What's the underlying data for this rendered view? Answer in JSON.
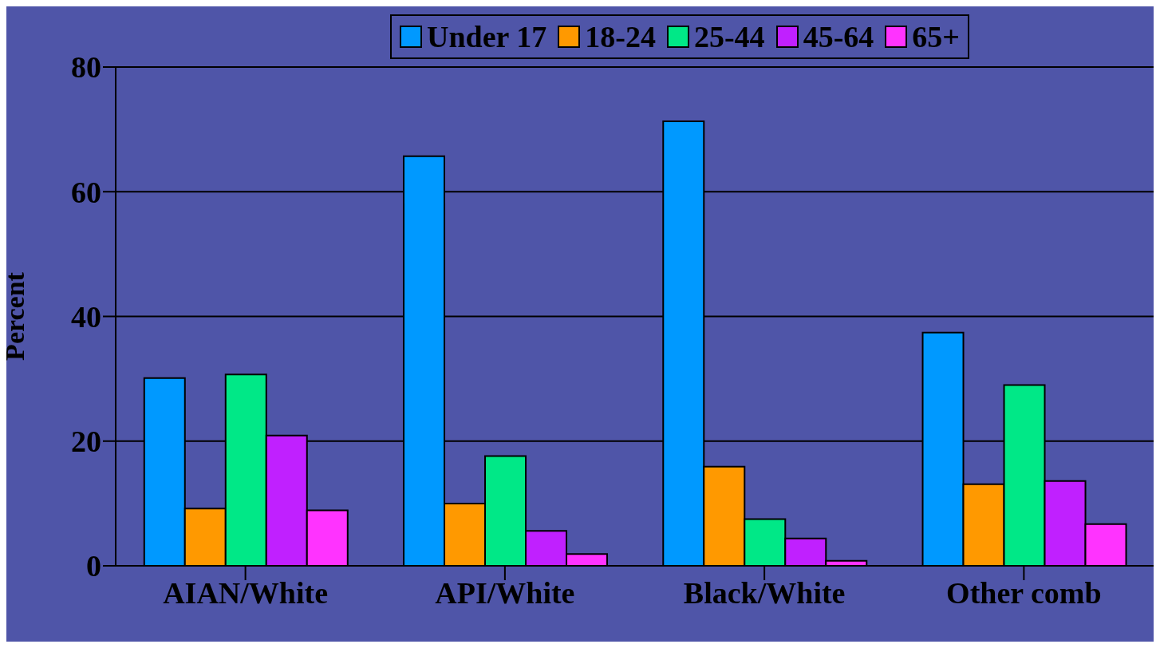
{
  "chart_data": {
    "type": "bar",
    "ylabel": "Percent",
    "categories": [
      "AIAN/White",
      "API/White",
      "Black/White",
      "Other comb"
    ],
    "series": [
      {
        "name": "Under 17",
        "color": "#0099ff",
        "values": [
          30.1,
          65.7,
          71.3,
          37.4
        ]
      },
      {
        "name": "18-24",
        "color": "#ff9900",
        "values": [
          9.2,
          10.0,
          15.9,
          13.1
        ]
      },
      {
        "name": "25-44",
        "color": "#00e887",
        "values": [
          30.7,
          17.6,
          7.5,
          29.0
        ]
      },
      {
        "name": "45-64",
        "color": "#c020ff",
        "values": [
          20.9,
          5.6,
          4.4,
          13.6
        ]
      },
      {
        "name": "65+",
        "color": "#ff33ff",
        "values": [
          8.9,
          1.9,
          0.8,
          6.7
        ]
      }
    ],
    "ylim": [
      0,
      80
    ],
    "yticks": [
      0,
      20,
      40,
      60,
      80
    ],
    "grid": "y",
    "legend": "top"
  }
}
